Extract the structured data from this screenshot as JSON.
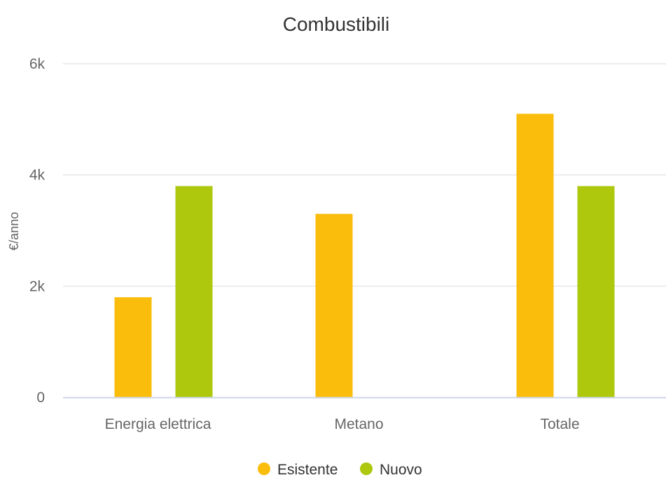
{
  "chart_data": {
    "type": "bar",
    "title": "Combustibili",
    "xlabel": "",
    "ylabel": "€/anno",
    "categories": [
      "Energia elettrica",
      "Metano",
      "Totale"
    ],
    "series": [
      {
        "name": "Esistente",
        "values": [
          1800,
          3300,
          5100
        ]
      },
      {
        "name": "Nuovo",
        "values": [
          3800,
          0,
          3800
        ]
      }
    ],
    "ylim": [
      0,
      6000
    ],
    "yticks": [
      {
        "value": 0,
        "label": "0"
      },
      {
        "value": 2000,
        "label": "2k"
      },
      {
        "value": 4000,
        "label": "4k"
      },
      {
        "value": 6000,
        "label": "6k"
      }
    ],
    "grid": true,
    "legend": "bottom-center"
  },
  "colors": {
    "Esistente": "#fbbd0c",
    "Nuovo": "#adc80d",
    "grid": "#e6e6e6",
    "axis": "#ccd6eb"
  }
}
